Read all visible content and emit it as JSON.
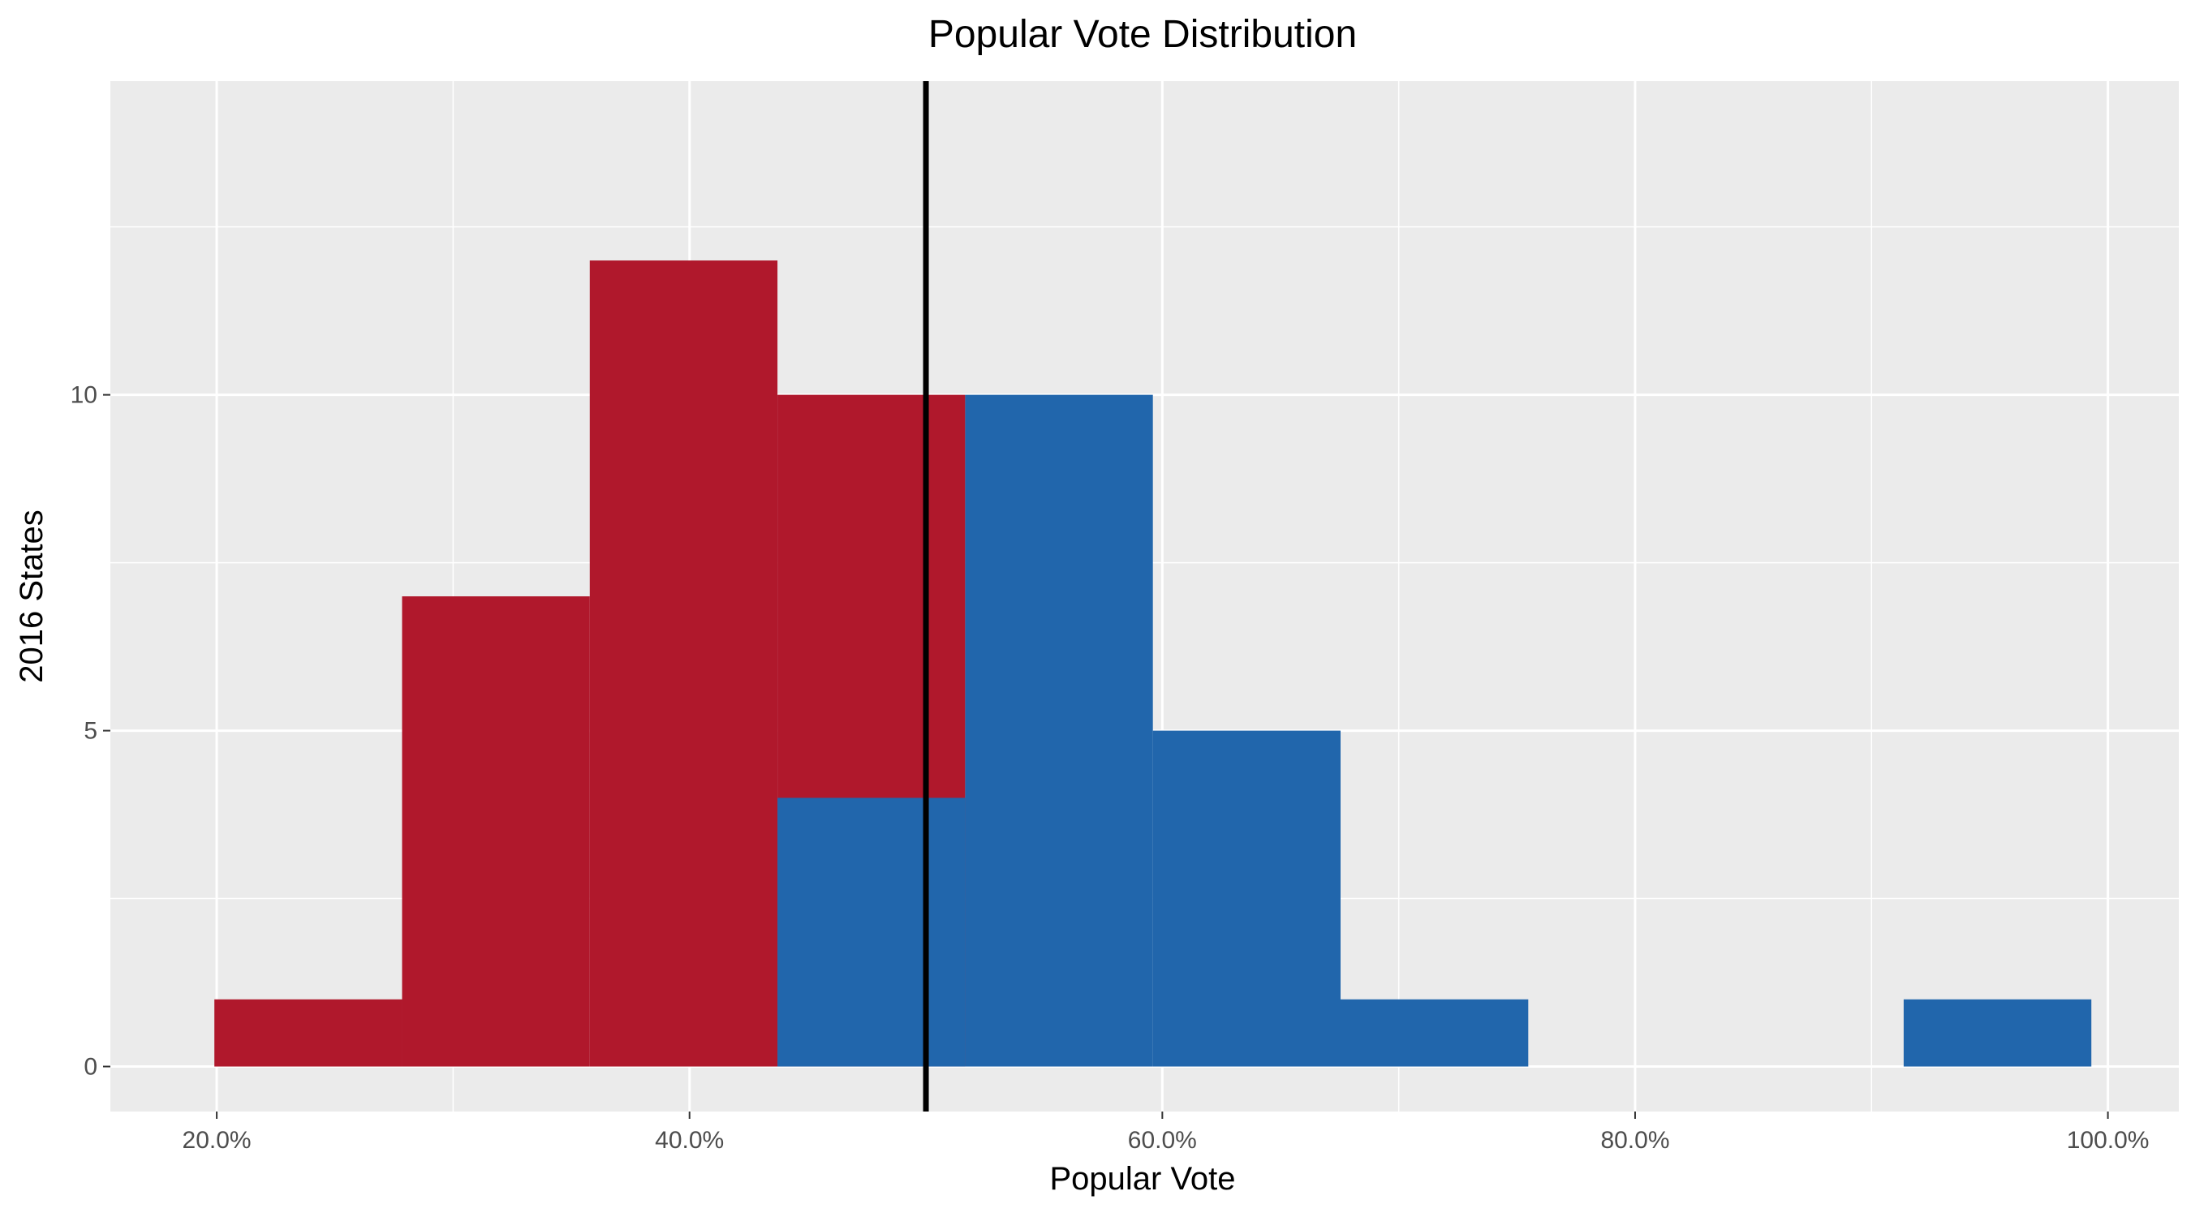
{
  "chart_data": {
    "type": "bar",
    "title": "Popular Vote Distribution",
    "xlabel": "Popular Vote",
    "ylabel": "2016 States",
    "xlim": [
      0.155,
      1.03
    ],
    "ylim": [
      -0.67,
      14.67
    ],
    "x_ticks": [
      0.2,
      0.4,
      0.6,
      0.8,
      1.0
    ],
    "x_tick_labels": [
      "20.0%",
      "40.0%",
      "60.0%",
      "80.0%",
      "100.0%"
    ],
    "x_minor_ticks": [
      0.3,
      0.5,
      0.7,
      0.9
    ],
    "y_ticks": [
      0,
      5,
      10
    ],
    "y_tick_labels": [
      "0",
      "5",
      "10"
    ],
    "y_minor_ticks": [
      2.5,
      7.5,
      12.5
    ],
    "grid": true,
    "panel_background": "#ebebeb",
    "reference_line_x": 0.5,
    "reference_line_color": "#000000",
    "bin_width": 0.0794,
    "series": [
      {
        "color": "#b0182c",
        "bins": [
          {
            "x0": 0.199,
            "x1": 0.2784,
            "count": 1
          },
          {
            "x0": 0.2784,
            "x1": 0.3578,
            "count": 7
          },
          {
            "x0": 0.3578,
            "x1": 0.4372,
            "count": 12
          },
          {
            "x0": 0.4372,
            "x1": 0.5166,
            "count": 10
          }
        ]
      },
      {
        "color": "#2166ac",
        "bins": [
          {
            "x0": 0.4372,
            "x1": 0.5166,
            "count": 4
          },
          {
            "x0": 0.5166,
            "x1": 0.596,
            "count": 10
          },
          {
            "x0": 0.596,
            "x1": 0.6754,
            "count": 5
          },
          {
            "x0": 0.6754,
            "x1": 0.7548,
            "count": 1
          },
          {
            "x0": 0.9136,
            "x1": 0.993,
            "count": 1
          }
        ]
      }
    ]
  }
}
